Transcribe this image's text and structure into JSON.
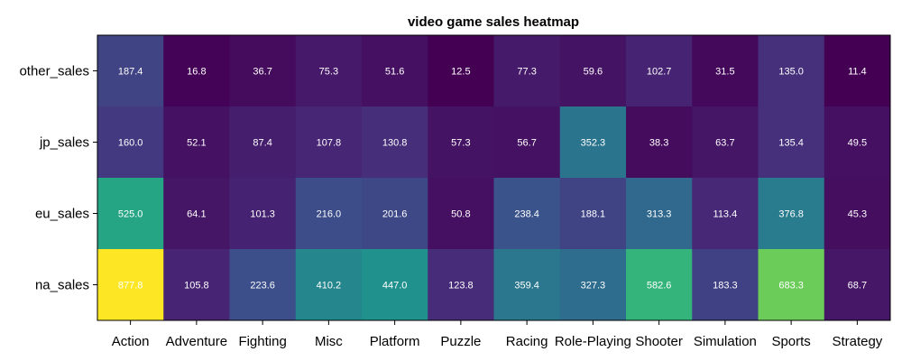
{
  "chart_data": {
    "type": "heatmap",
    "title": "video game sales heatmap",
    "xlabel": "",
    "ylabel": "",
    "colormap": "viridis",
    "categories": [
      "Action",
      "Adventure",
      "Fighting",
      "Misc",
      "Platform",
      "Puzzle",
      "Racing",
      "Role-Playing",
      "Shooter",
      "Simulation",
      "Sports",
      "Strategy"
    ],
    "rows": [
      "other_sales",
      "jp_sales",
      "eu_sales",
      "na_sales"
    ],
    "values": [
      [
        187.4,
        16.8,
        36.7,
        75.3,
        51.6,
        12.5,
        77.3,
        59.6,
        102.7,
        31.5,
        135.0,
        11.4
      ],
      [
        160.0,
        52.1,
        87.4,
        107.8,
        130.8,
        57.3,
        56.7,
        352.3,
        38.3,
        63.7,
        135.4,
        49.5
      ],
      [
        525.0,
        64.1,
        101.3,
        216.0,
        201.6,
        50.8,
        238.4,
        188.1,
        313.3,
        113.4,
        376.8,
        45.3
      ],
      [
        877.8,
        105.8,
        223.6,
        410.2,
        447.0,
        123.8,
        359.4,
        327.3,
        582.6,
        183.3,
        683.3,
        68.7
      ]
    ],
    "value_range": [
      11.4,
      877.8
    ],
    "grid": false,
    "legend": "none"
  }
}
